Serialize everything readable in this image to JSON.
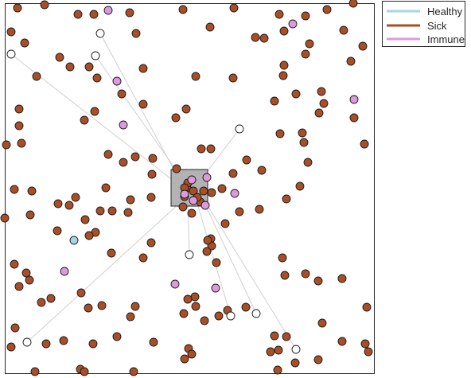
{
  "legend": {
    "healthy_label": "Healthy",
    "sick_label": "Sick",
    "immune_label": "Immune"
  },
  "colors": {
    "healthy": "#a6d6e3",
    "sick": "#a84f27",
    "immune": "#dd99dc",
    "empty": "#ffffff",
    "link_line": "#cfcfcf",
    "hub_fill": "#b3b3b3",
    "frame": "#262626"
  },
  "simulation": {
    "hub": {
      "x": 238,
      "y": 236,
      "w": 46,
      "h": 46
    },
    "links": [
      {
        "from": [
          14,
          68
        ],
        "to": [
          232,
          238
        ]
      },
      {
        "from": [
          126,
          42
        ],
        "to": [
          232,
          238
        ]
      },
      {
        "from": [
          120,
          70
        ],
        "to": [
          240,
          240
        ]
      },
      {
        "from": [
          301,
          162
        ],
        "to": [
          242,
          240
        ]
      },
      {
        "from": [
          238,
          320
        ],
        "to": [
          236,
          246
        ]
      },
      {
        "from": [
          34,
          430
        ],
        "to": [
          236,
          246
        ]
      },
      {
        "from": [
          322,
          394
        ],
        "to": [
          250,
          240
        ]
      },
      {
        "from": [
          290,
          397
        ],
        "to": [
          245,
          246
        ]
      },
      {
        "from": [
          372,
          439
        ],
        "to": [
          252,
          244
        ]
      }
    ],
    "empty_nodes": [
      [
        14,
        68
      ],
      [
        126,
        42
      ],
      [
        120,
        70
      ],
      [
        301,
        162
      ],
      [
        238,
        320
      ],
      [
        34,
        430
      ],
      [
        322,
        394
      ],
      [
        290,
        397
      ],
      [
        372,
        439
      ]
    ],
    "immune_nodes": [
      [
        136,
        13
      ],
      [
        368,
        30
      ],
      [
        147,
        102
      ],
      [
        155,
        157
      ],
      [
        445,
        125
      ],
      [
        241,
        226
      ],
      [
        260,
        223
      ],
      [
        232,
        244
      ],
      [
        243,
        252
      ],
      [
        258,
        258
      ],
      [
        295,
        243
      ],
      [
        81,
        341
      ],
      [
        220,
        357
      ],
      [
        271,
        362
      ]
    ],
    "healthy_nodes": [
      [
        93,
        302
      ]
    ],
    "sick_nodes": [
      [
        22,
        10
      ],
      [
        56,
        6
      ],
      [
        98,
        18
      ],
      [
        118,
        18
      ],
      [
        163,
        16
      ],
      [
        230,
        12
      ],
      [
        294,
        10
      ],
      [
        351,
        18
      ],
      [
        384,
        20
      ],
      [
        411,
        12
      ],
      [
        444,
        4
      ],
      [
        14,
        40
      ],
      [
        31,
        54
      ],
      [
        75,
        72
      ],
      [
        88,
        84
      ],
      [
        112,
        84
      ],
      [
        122,
        98
      ],
      [
        171,
        42
      ],
      [
        180,
        86
      ],
      [
        246,
        96
      ],
      [
        264,
        34
      ],
      [
        293,
        98
      ],
      [
        321,
        47
      ],
      [
        332,
        48
      ],
      [
        357,
        39
      ],
      [
        389,
        55
      ],
      [
        384,
        68
      ],
      [
        357,
        82
      ],
      [
        356,
        95
      ],
      [
        432,
        38
      ],
      [
        456,
        58
      ],
      [
        441,
        77
      ],
      [
        46,
        96
      ],
      [
        153,
        118
      ],
      [
        180,
        131
      ],
      [
        119,
        140
      ],
      [
        106,
        151
      ],
      [
        24,
        137
      ],
      [
        24,
        158
      ],
      [
        8,
        182
      ],
      [
        27,
        180
      ],
      [
        221,
        148
      ],
      [
        234,
        137
      ],
      [
        345,
        127
      ],
      [
        372,
        118
      ],
      [
        404,
        115
      ],
      [
        407,
        130
      ],
      [
        401,
        142
      ],
      [
        445,
        148
      ],
      [
        136,
        194
      ],
      [
        155,
        204
      ],
      [
        170,
        197
      ],
      [
        192,
        199
      ],
      [
        191,
        219
      ],
      [
        253,
        187
      ],
      [
        265,
        187
      ],
      [
        310,
        201
      ],
      [
        329,
        214
      ],
      [
        293,
        218
      ],
      [
        352,
        168
      ],
      [
        380,
        167
      ],
      [
        382,
        179
      ],
      [
        387,
        204
      ],
      [
        458,
        181
      ],
      [
        18,
        238
      ],
      [
        40,
        240
      ],
      [
        95,
        248
      ],
      [
        87,
        258
      ],
      [
        73,
        256
      ],
      [
        133,
        236
      ],
      [
        164,
        251
      ],
      [
        190,
        248
      ],
      [
        377,
        234
      ],
      [
        360,
        250
      ],
      [
        301,
        266
      ],
      [
        326,
        263
      ],
      [
        283,
        281
      ],
      [
        38,
        270
      ],
      [
        6,
        274
      ],
      [
        126,
        265
      ],
      [
        141,
        265
      ],
      [
        161,
        267
      ],
      [
        107,
        276
      ],
      [
        120,
        292
      ],
      [
        72,
        290
      ],
      [
        112,
        296
      ],
      [
        190,
        305
      ],
      [
        265,
        300
      ],
      [
        266,
        309
      ],
      [
        180,
        324
      ],
      [
        140,
        318
      ],
      [
        222,
        212
      ],
      [
        241,
        268
      ],
      [
        18,
        332
      ],
      [
        33,
        343
      ],
      [
        37,
        352
      ],
      [
        24,
        360
      ],
      [
        64,
        375
      ],
      [
        52,
        380
      ],
      [
        102,
        368
      ],
      [
        111,
        387
      ],
      [
        128,
        384
      ],
      [
        170,
        385
      ],
      [
        245,
        373
      ],
      [
        246,
        385
      ],
      [
        355,
        324
      ],
      [
        358,
        346
      ],
      [
        384,
        344
      ],
      [
        400,
        353
      ],
      [
        430,
        350
      ],
      [
        260,
        316
      ],
      [
        272,
        330
      ],
      [
        231,
        394
      ],
      [
        257,
        403
      ],
      [
        275,
        397
      ],
      [
        309,
        386
      ],
      [
        360,
        423
      ],
      [
        405,
        406
      ],
      [
        461,
        386
      ],
      [
        19,
        412
      ],
      [
        14,
        436
      ],
      [
        58,
        432
      ],
      [
        80,
        428
      ],
      [
        117,
        432
      ],
      [
        147,
        423
      ],
      [
        193,
        430
      ],
      [
        237,
        438
      ],
      [
        241,
        445
      ],
      [
        350,
        440
      ],
      [
        345,
        422
      ],
      [
        340,
        442
      ],
      [
        400,
        452
      ],
      [
        371,
        456
      ],
      [
        430,
        429
      ],
      [
        459,
        432
      ],
      [
        463,
        442
      ],
      [
        44,
        467
      ],
      [
        101,
        464
      ],
      [
        106,
        467
      ],
      [
        168,
        467
      ],
      [
        232,
        451
      ],
      [
        349,
        465
      ],
      [
        164,
        398
      ],
      [
        261,
        302
      ],
      [
        286,
        390
      ],
      [
        236,
        376
      ],
      [
        230,
        260
      ],
      [
        232,
        247
      ],
      [
        266,
        242
      ],
      [
        279,
        237
      ],
      [
        235,
        236
      ],
      [
        243,
        240
      ],
      [
        256,
        240
      ],
      [
        236,
        230
      ],
      [
        252,
        254
      ],
      [
        248,
        248
      ],
      [
        232,
        236
      ]
    ]
  }
}
